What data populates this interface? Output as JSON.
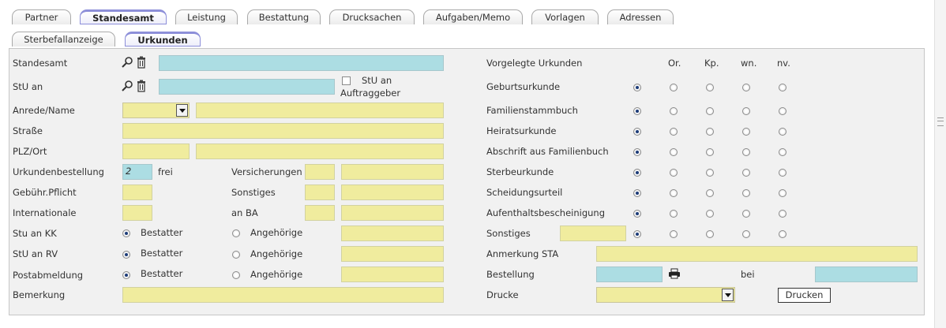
{
  "tabs_row1": [
    "Partner",
    "Standesamt",
    "Leistung",
    "Bestattung",
    "Drucksachen",
    "Aufgaben/Memo",
    "Vorlagen",
    "Adressen"
  ],
  "tabs_row2": [
    "Sterbefallanzeige",
    "Urkunden"
  ],
  "active_tab_row1": "Standesamt",
  "active_tab_row2": "Urkunden",
  "left": {
    "standesamt": "Standesamt",
    "stu_an": "StU an",
    "stu_an_auftraggeber_1": "StU an",
    "stu_an_auftraggeber_2": "Auftraggeber",
    "anrede_name": "Anrede/Name",
    "strasse": "Straße",
    "plz_ort": "PLZ/Ort",
    "urkundenbestellung": "Urkundenbestellung",
    "urkundenbestellung_value": "2",
    "frei": "frei",
    "gebuehr_pflicht": "Gebühr.Pflicht",
    "internationale": "Internationale",
    "versicherungen": "Versicherungen",
    "sonstiges": "Sonstiges",
    "an_ba": "an BA",
    "stu_an_kk": "Stu an KK",
    "stu_an_rv": "StU an RV",
    "postabmeldung": "Postabmeldung",
    "bestatter": "Bestatter",
    "angehoerige": "Angehörige",
    "bemerkung": "Bemerkung"
  },
  "right": {
    "vorgelegte_urkunden": "Vorgelegte Urkunden",
    "columns": [
      "Or.",
      "Kp.",
      "wn.",
      "nv."
    ],
    "documents": [
      {
        "label": "Geburtsurkunde",
        "selected": 0
      },
      {
        "label": "Familienstammbuch",
        "selected": 0
      },
      {
        "label": "Heiratsurkunde",
        "selected": 0
      },
      {
        "label": "Abschrift aus Familienbuch",
        "selected": 0
      },
      {
        "label": "Sterbeurkunde",
        "selected": 0
      },
      {
        "label": "Scheidungsurteil",
        "selected": 0
      },
      {
        "label": "Aufenthaltsbescheinigung",
        "selected": 0
      },
      {
        "label": "Sonstiges",
        "selected": 0
      }
    ],
    "anmerkung_sta": "Anmerkung STA",
    "bestellung": "Bestellung",
    "bei": "bei",
    "drucke": "Drucke",
    "drucken_button": "Drucken"
  },
  "icons": {
    "search": "magnifier-icon",
    "delete": "trash-icon",
    "print": "printer-icon"
  },
  "colors": {
    "yellow_field": "#f0ec9e",
    "blue_field": "#acdde3",
    "tab_active_border": "#8d8fd9",
    "panel_bg": "#f1f1f1"
  }
}
